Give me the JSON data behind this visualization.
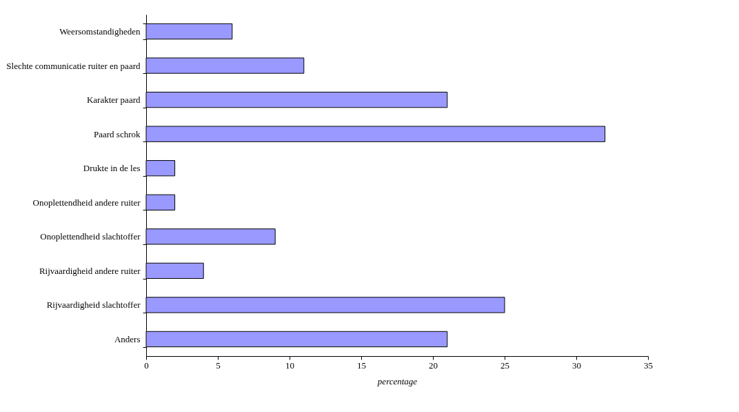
{
  "chart_data": {
    "type": "bar",
    "orientation": "horizontal",
    "xlabel": "percentage",
    "categories": [
      "Weersomstandigheden",
      "Slechte communicatie ruiter en paard",
      "Karakter paard",
      "Paard schrok",
      "Drukte in de les",
      "Onoplettendheid andere ruiter",
      "Onoplettendheid slachtoffer",
      "Rijvaardigheid andere ruiter",
      "Rijvaardigheid slachtoffer",
      "Anders"
    ],
    "values": [
      6,
      11,
      21,
      32,
      2,
      2,
      9,
      4,
      25,
      21
    ],
    "color": "#9999ff",
    "xlim": [
      0,
      35
    ],
    "xticks": [
      0,
      5,
      10,
      15,
      20,
      25,
      30,
      35
    ],
    "grid": false
  }
}
